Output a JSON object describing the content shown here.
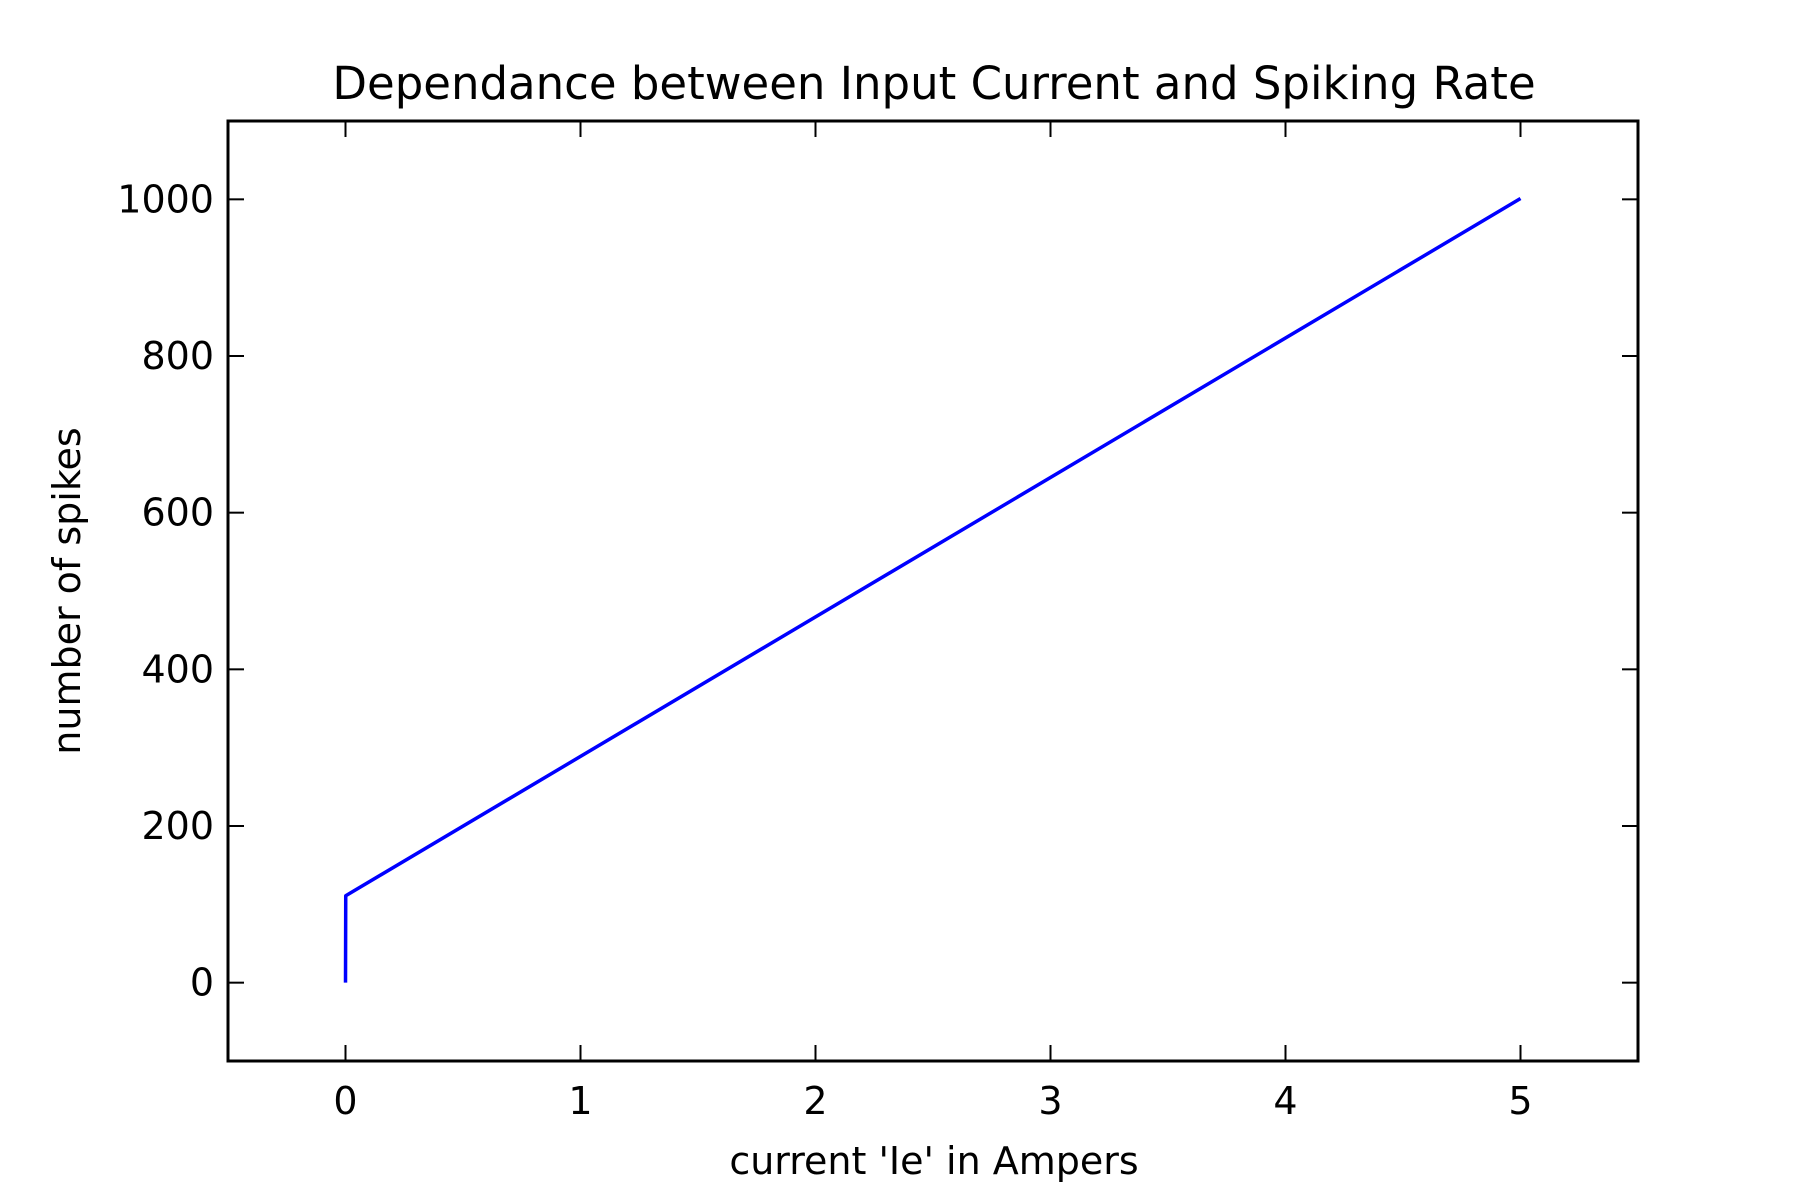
{
  "chart_data": {
    "type": "line",
    "title": "Dependance between Input Current and Spiking Rate",
    "xlabel": "current 'Ie' in Ampers",
    "ylabel": "number of spikes",
    "xlim": [
      -0.5,
      5.5
    ],
    "ylim": [
      -100,
      1100
    ],
    "x_ticks": [
      0,
      1,
      2,
      3,
      4,
      5
    ],
    "x_tick_labels": [
      "0",
      "1",
      "2",
      "3",
      "4",
      "5"
    ],
    "y_ticks": [
      0,
      200,
      400,
      600,
      800,
      1000
    ],
    "y_tick_labels": [
      "0",
      "200",
      "400",
      "600",
      "800",
      "1000"
    ],
    "grid": false,
    "series": [
      {
        "color": "#0000ff",
        "x": [
          0,
          0.001,
          5
        ],
        "y": [
          0,
          111,
          1001
        ]
      }
    ]
  }
}
